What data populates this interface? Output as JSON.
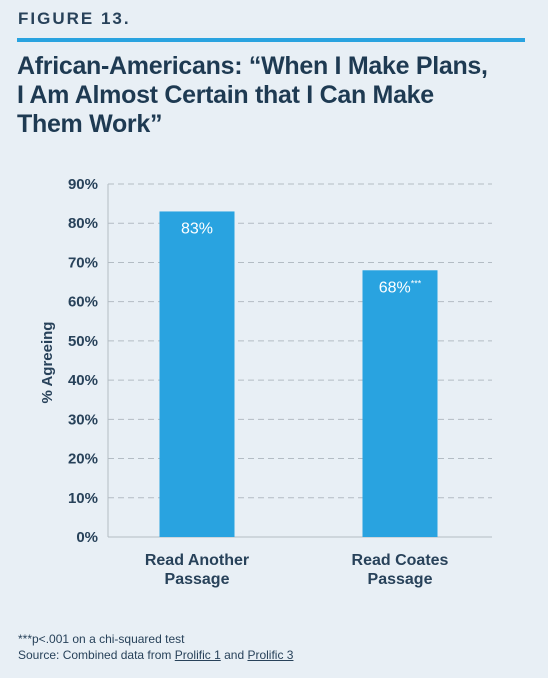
{
  "figure_label": "FIGURE 13.",
  "title_lines": [
    "African-Americans: “When I Make Plans,",
    "I Am Almost Certain that I Can Make",
    "Them Work”"
  ],
  "colors": {
    "bar": "#29a3e0",
    "text": "#28425a",
    "rule": "#29a3e0",
    "grid": "#b3bcc4"
  },
  "chart_data": {
    "type": "bar",
    "categories": [
      [
        "Read Another",
        "Passage"
      ],
      [
        "Read Coates",
        "Passage"
      ]
    ],
    "values": [
      83,
      68
    ],
    "data_labels": [
      "83%",
      "68%"
    ],
    "data_label_superscripts": [
      "",
      "***"
    ],
    "ylabel": "% Agreeing",
    "ylim": [
      0,
      90
    ],
    "yticks": [
      0,
      10,
      20,
      30,
      40,
      50,
      60,
      70,
      80,
      90
    ],
    "ytick_labels": [
      "0%",
      "10%",
      "20%",
      "30%",
      "40%",
      "50%",
      "60%",
      "70%",
      "80%",
      "90%"
    ],
    "grid": true
  },
  "footnote": {
    "significance": "***p<.001 on a chi-squared test",
    "source_prefix": "Source: Combined data from ",
    "link1": "Prolific 1",
    "conjunction": " and ",
    "link2": "Prolific 3"
  }
}
